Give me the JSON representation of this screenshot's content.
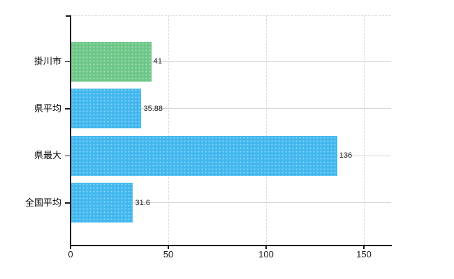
{
  "chart_data": {
    "type": "bar",
    "orientation": "horizontal",
    "title": "",
    "xlabel": "",
    "ylabel": "",
    "categories": [
      "掛川市",
      "県平均",
      "県最大",
      "全国平均"
    ],
    "values": [
      41,
      35.88,
      136,
      31.6
    ],
    "value_labels": [
      "41",
      "35.88",
      "136",
      "31.6"
    ],
    "bar_colors": [
      "#6CC787",
      "#41B7EF",
      "#41B7EF",
      "#41B7EF"
    ],
    "x_ticks": [
      0,
      50,
      100,
      150
    ],
    "x_tick_labels": [
      "0",
      "50",
      "100",
      "150"
    ],
    "xlim": [
      0,
      164
    ],
    "grid": "on",
    "legend": "none"
  },
  "colors": {
    "bar_green": "#6CC787",
    "bar_blue": "#41B7EF",
    "axis": "#1a1a1a",
    "gridline": "#d6d6d6",
    "background": "#ffffff"
  }
}
